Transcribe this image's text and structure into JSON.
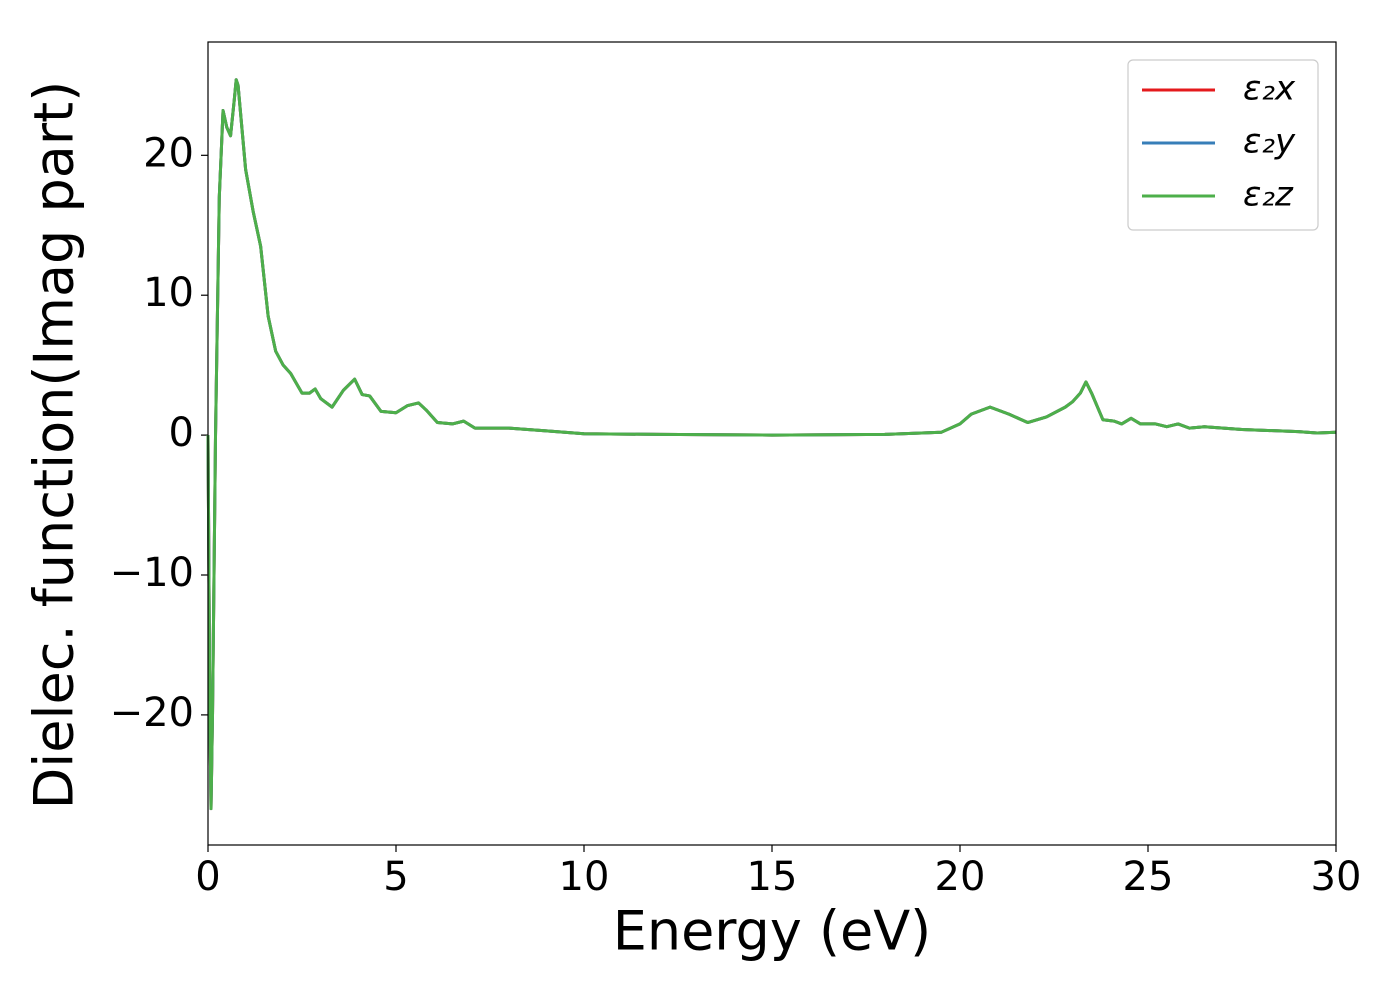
{
  "chart_data": {
    "type": "line",
    "xlabel": "Energy (eV)",
    "ylabel": "Dielec. function(Imag part)",
    "x": [
      0,
      0.05,
      0.08,
      0.12,
      0.2,
      0.3,
      0.4,
      0.5,
      0.6,
      0.7,
      0.75,
      0.8,
      1.0,
      1.2,
      1.4,
      1.6,
      1.8,
      2.0,
      2.2,
      2.5,
      2.7,
      2.85,
      3.0,
      3.3,
      3.6,
      3.9,
      4.1,
      4.3,
      4.6,
      5.0,
      5.3,
      5.6,
      5.8,
      6.1,
      6.5,
      6.8,
      7.1,
      8,
      9,
      10,
      12,
      15,
      18,
      19.5,
      20,
      20.3,
      20.8,
      21.3,
      21.8,
      22.3,
      22.8,
      23.0,
      23.2,
      23.35,
      23.5,
      23.8,
      24.1,
      24.3,
      24.55,
      24.8,
      25.2,
      25.5,
      25.8,
      26.1,
      26.5,
      27.5,
      29,
      29.5,
      30
    ],
    "series": [
      {
        "name": "ε₂x",
        "color": "#e41a1c",
        "values": [
          0,
          -20,
          -26.7,
          -20,
          0,
          17,
          23.2,
          22,
          21.4,
          24,
          25.4,
          25,
          19,
          16,
          13.5,
          8.5,
          6,
          5,
          4.4,
          3.0,
          3.0,
          3.3,
          2.6,
          2.0,
          3.2,
          4.0,
          2.9,
          2.8,
          1.7,
          1.6,
          2.1,
          2.3,
          1.8,
          0.9,
          0.8,
          1.0,
          0.5,
          0.5,
          0.3,
          0.1,
          0.05,
          0.0,
          0.05,
          0.2,
          0.8,
          1.5,
          2.0,
          1.5,
          0.9,
          1.3,
          2.0,
          2.4,
          3.0,
          3.8,
          3.0,
          1.1,
          1.0,
          0.8,
          1.2,
          0.8,
          0.8,
          0.6,
          0.8,
          0.5,
          0.6,
          0.4,
          0.25,
          0.15,
          0.2
        ]
      },
      {
        "name": "ε₂y",
        "color": "#377eb8",
        "values": [
          0,
          -20,
          -26.7,
          -20,
          0,
          17,
          23.2,
          22,
          21.4,
          24,
          25.4,
          25,
          19,
          16,
          13.5,
          8.5,
          6,
          5,
          4.4,
          3.0,
          3.0,
          3.3,
          2.6,
          2.0,
          3.2,
          4.0,
          2.9,
          2.8,
          1.7,
          1.6,
          2.1,
          2.3,
          1.8,
          0.9,
          0.8,
          1.0,
          0.5,
          0.5,
          0.3,
          0.1,
          0.05,
          0.0,
          0.05,
          0.2,
          0.8,
          1.5,
          2.0,
          1.5,
          0.9,
          1.3,
          2.0,
          2.4,
          3.0,
          3.8,
          3.0,
          1.1,
          1.0,
          0.8,
          1.2,
          0.8,
          0.8,
          0.6,
          0.8,
          0.5,
          0.6,
          0.4,
          0.25,
          0.15,
          0.2
        ]
      },
      {
        "name": "ε₂z",
        "color": "#4daf4a",
        "values": [
          0,
          -20,
          -26.7,
          -20,
          0,
          17,
          23.2,
          22,
          21.4,
          24,
          25.4,
          25,
          19,
          16,
          13.5,
          8.5,
          6,
          5,
          4.4,
          3.0,
          3.0,
          3.3,
          2.6,
          2.0,
          3.2,
          4.0,
          2.9,
          2.8,
          1.7,
          1.6,
          2.1,
          2.3,
          1.8,
          0.9,
          0.8,
          1.0,
          0.5,
          0.5,
          0.3,
          0.1,
          0.05,
          0.0,
          0.05,
          0.2,
          0.8,
          1.5,
          2.0,
          1.5,
          0.9,
          1.3,
          2.0,
          2.4,
          3.0,
          3.8,
          3.0,
          1.1,
          1.0,
          0.8,
          1.2,
          0.8,
          0.8,
          0.6,
          0.8,
          0.5,
          0.6,
          0.4,
          0.25,
          0.15,
          0.2
        ]
      }
    ],
    "xlim": [
      0,
      30
    ],
    "xticks": [
      0,
      5,
      10,
      15,
      20,
      25,
      30
    ],
    "ylim": [
      -29.3,
      28.1
    ],
    "yticks": [
      {
        "value": -20,
        "label": "−20"
      },
      {
        "value": -10,
        "label": "−10"
      },
      0,
      10,
      20
    ],
    "grid": false,
    "legend": "upper right"
  }
}
